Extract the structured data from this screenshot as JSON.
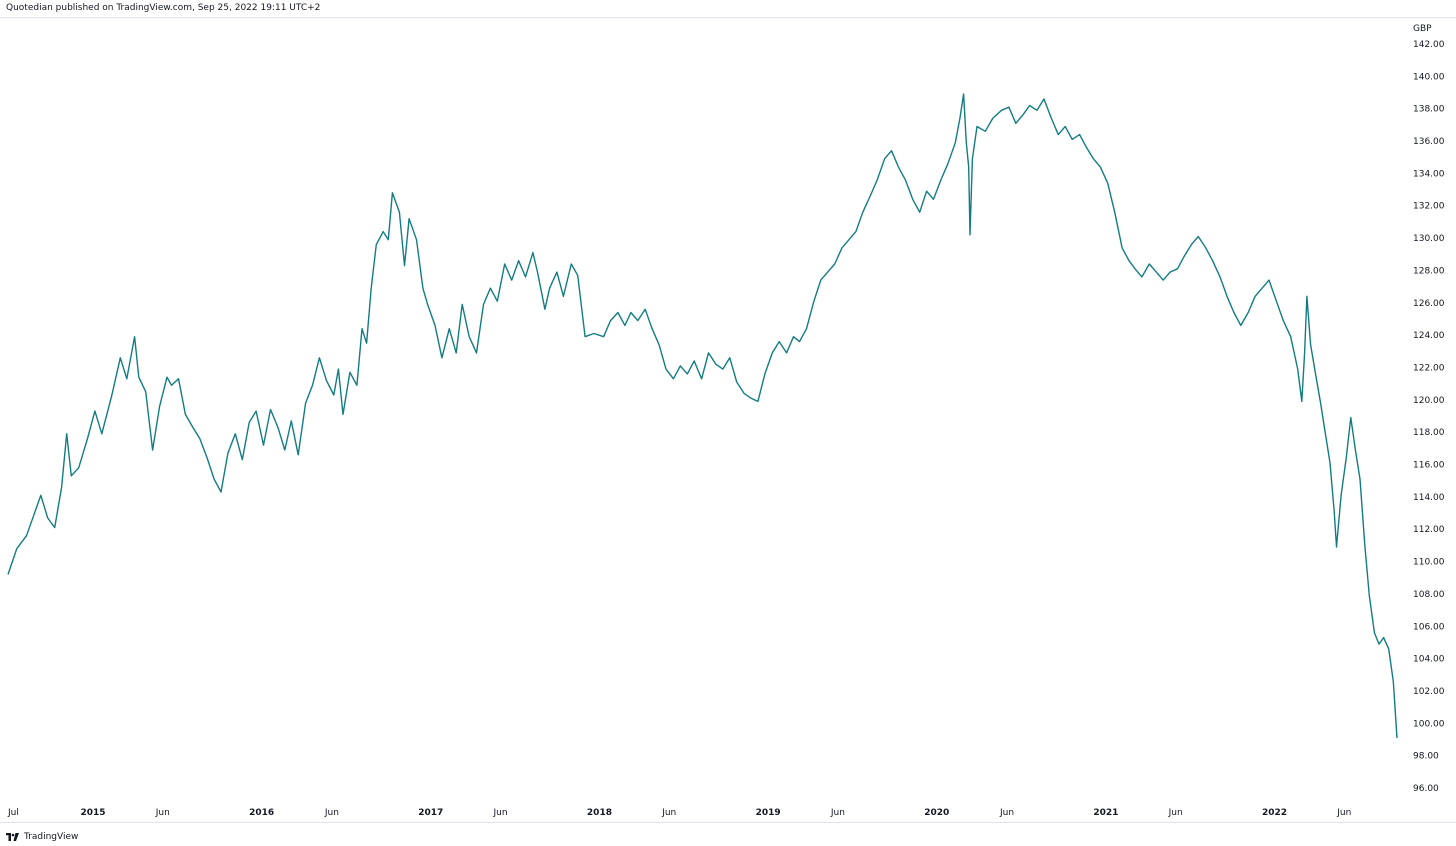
{
  "header": {
    "attribution": "Quotedian published on TradingView.com, Sep 25, 2022 19:11 UTC+2"
  },
  "footer": {
    "brand": "TradingView",
    "logo_icon": "tradingview-logo-icon"
  },
  "colors": {
    "line": "#137c82",
    "axis_text": "#131722",
    "border": "#e0e3eb"
  },
  "chart_data": {
    "type": "line",
    "title": "",
    "currency": "GBP",
    "ylim": [
      96,
      142
    ],
    "yticks": [
      96,
      98,
      100,
      102,
      104,
      106,
      108,
      110,
      112,
      114,
      116,
      118,
      120,
      122,
      124,
      126,
      128,
      130,
      132,
      134,
      136,
      138,
      140,
      142
    ],
    "xlim": [
      "2014-07-01",
      "2022-09-23"
    ],
    "xticks": [
      {
        "date": "2014-07-01",
        "label": "Jul",
        "bold": false
      },
      {
        "date": "2015-01-01",
        "label": "2015",
        "bold": true
      },
      {
        "date": "2015-06-01",
        "label": "Jun",
        "bold": false
      },
      {
        "date": "2016-01-01",
        "label": "2016",
        "bold": true
      },
      {
        "date": "2016-06-01",
        "label": "Jun",
        "bold": false
      },
      {
        "date": "2017-01-01",
        "label": "2017",
        "bold": true
      },
      {
        "date": "2017-06-01",
        "label": "Jun",
        "bold": false
      },
      {
        "date": "2018-01-01",
        "label": "2018",
        "bold": true
      },
      {
        "date": "2018-06-01",
        "label": "Jun",
        "bold": false
      },
      {
        "date": "2019-01-01",
        "label": "2019",
        "bold": true
      },
      {
        "date": "2019-06-01",
        "label": "Jun",
        "bold": false
      },
      {
        "date": "2020-01-01",
        "label": "2020",
        "bold": true
      },
      {
        "date": "2020-06-01",
        "label": "Jun",
        "bold": false
      },
      {
        "date": "2021-01-01",
        "label": "2021",
        "bold": true
      },
      {
        "date": "2021-06-01",
        "label": "Jun",
        "bold": false
      },
      {
        "date": "2022-01-01",
        "label": "2022",
        "bold": true
      },
      {
        "date": "2022-06-01",
        "label": "Jun",
        "bold": false
      }
    ],
    "series": [
      {
        "points": [
          [
            "2014-07-01",
            109.2
          ],
          [
            "2014-07-20",
            110.8
          ],
          [
            "2014-08-10",
            111.6
          ],
          [
            "2014-08-25",
            112.8
          ],
          [
            "2014-09-10",
            114.1
          ],
          [
            "2014-09-25",
            112.7
          ],
          [
            "2014-10-10",
            112.1
          ],
          [
            "2014-10-25",
            114.6
          ],
          [
            "2014-11-05",
            117.9
          ],
          [
            "2014-11-15",
            115.3
          ],
          [
            "2014-12-01",
            115.8
          ],
          [
            "2014-12-20",
            117.6
          ],
          [
            "2015-01-05",
            119.3
          ],
          [
            "2015-01-20",
            117.9
          ],
          [
            "2015-02-10",
            120.2
          ],
          [
            "2015-03-01",
            122.6
          ],
          [
            "2015-03-15",
            121.3
          ],
          [
            "2015-04-01",
            123.9
          ],
          [
            "2015-04-10",
            121.4
          ],
          [
            "2015-04-25",
            120.5
          ],
          [
            "2015-05-10",
            116.9
          ],
          [
            "2015-05-25",
            119.6
          ],
          [
            "2015-06-10",
            121.4
          ],
          [
            "2015-06-20",
            120.9
          ],
          [
            "2015-07-05",
            121.3
          ],
          [
            "2015-07-20",
            119.1
          ],
          [
            "2015-08-05",
            118.3
          ],
          [
            "2015-08-20",
            117.6
          ],
          [
            "2015-09-05",
            116.4
          ],
          [
            "2015-09-20",
            115.1
          ],
          [
            "2015-10-05",
            114.3
          ],
          [
            "2015-10-20",
            116.7
          ],
          [
            "2015-11-05",
            117.9
          ],
          [
            "2015-11-20",
            116.3
          ],
          [
            "2015-12-05",
            118.6
          ],
          [
            "2015-12-20",
            119.3
          ],
          [
            "2016-01-05",
            117.2
          ],
          [
            "2016-01-20",
            119.4
          ],
          [
            "2016-02-05",
            118.3
          ],
          [
            "2016-02-20",
            116.9
          ],
          [
            "2016-03-05",
            118.7
          ],
          [
            "2016-03-20",
            116.6
          ],
          [
            "2016-04-05",
            119.8
          ],
          [
            "2016-04-20",
            120.9
          ],
          [
            "2016-05-05",
            122.6
          ],
          [
            "2016-05-20",
            121.2
          ],
          [
            "2016-06-05",
            120.3
          ],
          [
            "2016-06-15",
            121.9
          ],
          [
            "2016-06-25",
            119.1
          ],
          [
            "2016-07-10",
            121.7
          ],
          [
            "2016-07-25",
            120.9
          ],
          [
            "2016-08-05",
            124.4
          ],
          [
            "2016-08-15",
            123.5
          ],
          [
            "2016-08-25",
            126.9
          ],
          [
            "2016-09-05",
            129.6
          ],
          [
            "2016-09-20",
            130.4
          ],
          [
            "2016-10-01",
            129.9
          ],
          [
            "2016-10-10",
            132.8
          ],
          [
            "2016-10-25",
            131.6
          ],
          [
            "2016-11-05",
            128.3
          ],
          [
            "2016-11-15",
            131.2
          ],
          [
            "2016-12-01",
            129.9
          ],
          [
            "2016-12-15",
            126.9
          ],
          [
            "2016-12-25",
            125.9
          ],
          [
            "2017-01-10",
            124.6
          ],
          [
            "2017-01-25",
            122.6
          ],
          [
            "2017-02-10",
            124.4
          ],
          [
            "2017-02-25",
            122.9
          ],
          [
            "2017-03-10",
            125.9
          ],
          [
            "2017-03-25",
            123.9
          ],
          [
            "2017-04-10",
            122.9
          ],
          [
            "2017-04-25",
            125.9
          ],
          [
            "2017-05-10",
            126.9
          ],
          [
            "2017-05-25",
            126.1
          ],
          [
            "2017-06-10",
            128.4
          ],
          [
            "2017-06-25",
            127.4
          ],
          [
            "2017-07-10",
            128.6
          ],
          [
            "2017-07-25",
            127.6
          ],
          [
            "2017-08-10",
            129.1
          ],
          [
            "2017-08-20",
            127.9
          ],
          [
            "2017-09-05",
            125.6
          ],
          [
            "2017-09-15",
            126.9
          ],
          [
            "2017-10-01",
            127.9
          ],
          [
            "2017-10-15",
            126.4
          ],
          [
            "2017-11-01",
            128.4
          ],
          [
            "2017-11-15",
            127.7
          ],
          [
            "2017-12-01",
            123.9
          ],
          [
            "2017-12-20",
            124.1
          ],
          [
            "2018-01-10",
            123.9
          ],
          [
            "2018-01-25",
            124.9
          ],
          [
            "2018-02-10",
            125.4
          ],
          [
            "2018-02-25",
            124.6
          ],
          [
            "2018-03-10",
            125.4
          ],
          [
            "2018-03-25",
            124.9
          ],
          [
            "2018-04-10",
            125.6
          ],
          [
            "2018-04-25",
            124.4
          ],
          [
            "2018-05-10",
            123.4
          ],
          [
            "2018-05-25",
            121.9
          ],
          [
            "2018-06-10",
            121.3
          ],
          [
            "2018-06-25",
            122.1
          ],
          [
            "2018-07-10",
            121.6
          ],
          [
            "2018-07-25",
            122.4
          ],
          [
            "2018-08-10",
            121.3
          ],
          [
            "2018-08-25",
            122.9
          ],
          [
            "2018-09-10",
            122.2
          ],
          [
            "2018-09-25",
            121.9
          ],
          [
            "2018-10-10",
            122.6
          ],
          [
            "2018-10-25",
            121.1
          ],
          [
            "2018-11-10",
            120.4
          ],
          [
            "2018-11-25",
            120.1
          ],
          [
            "2018-12-10",
            119.9
          ],
          [
            "2018-12-25",
            121.6
          ],
          [
            "2019-01-10",
            122.9
          ],
          [
            "2019-01-25",
            123.6
          ],
          [
            "2019-02-10",
            122.9
          ],
          [
            "2019-02-25",
            123.9
          ],
          [
            "2019-03-10",
            123.6
          ],
          [
            "2019-03-25",
            124.4
          ],
          [
            "2019-04-10",
            126.1
          ],
          [
            "2019-04-25",
            127.4
          ],
          [
            "2019-05-10",
            127.9
          ],
          [
            "2019-05-25",
            128.4
          ],
          [
            "2019-06-10",
            129.4
          ],
          [
            "2019-06-25",
            129.9
          ],
          [
            "2019-07-10",
            130.4
          ],
          [
            "2019-07-25",
            131.6
          ],
          [
            "2019-08-10",
            132.6
          ],
          [
            "2019-08-25",
            133.6
          ],
          [
            "2019-09-10",
            134.9
          ],
          [
            "2019-09-25",
            135.4
          ],
          [
            "2019-10-10",
            134.4
          ],
          [
            "2019-10-25",
            133.6
          ],
          [
            "2019-11-10",
            132.4
          ],
          [
            "2019-11-25",
            131.6
          ],
          [
            "2019-12-10",
            132.9
          ],
          [
            "2019-12-25",
            132.4
          ],
          [
            "2020-01-10",
            133.6
          ],
          [
            "2020-01-25",
            134.6
          ],
          [
            "2020-02-10",
            135.9
          ],
          [
            "2020-02-20",
            137.4
          ],
          [
            "2020-02-28",
            138.9
          ],
          [
            "2020-03-05",
            135.9
          ],
          [
            "2020-03-10",
            134.4
          ],
          [
            "2020-03-13",
            130.2
          ],
          [
            "2020-03-18",
            134.9
          ],
          [
            "2020-03-28",
            136.9
          ],
          [
            "2020-04-15",
            136.6
          ],
          [
            "2020-05-01",
            137.4
          ],
          [
            "2020-05-20",
            137.9
          ],
          [
            "2020-06-05",
            138.1
          ],
          [
            "2020-06-20",
            137.1
          ],
          [
            "2020-07-05",
            137.6
          ],
          [
            "2020-07-20",
            138.2
          ],
          [
            "2020-08-05",
            137.9
          ],
          [
            "2020-08-20",
            138.6
          ],
          [
            "2020-09-05",
            137.4
          ],
          [
            "2020-09-20",
            136.4
          ],
          [
            "2020-10-05",
            136.9
          ],
          [
            "2020-10-20",
            136.1
          ],
          [
            "2020-11-05",
            136.4
          ],
          [
            "2020-11-20",
            135.6
          ],
          [
            "2020-12-05",
            134.9
          ],
          [
            "2020-12-20",
            134.4
          ],
          [
            "2021-01-05",
            133.4
          ],
          [
            "2021-01-20",
            131.6
          ],
          [
            "2021-02-05",
            129.4
          ],
          [
            "2021-02-20",
            128.6
          ],
          [
            "2021-03-05",
            128.1
          ],
          [
            "2021-03-20",
            127.6
          ],
          [
            "2021-04-05",
            128.4
          ],
          [
            "2021-04-20",
            127.9
          ],
          [
            "2021-05-05",
            127.4
          ],
          [
            "2021-05-20",
            127.9
          ],
          [
            "2021-06-05",
            128.1
          ],
          [
            "2021-06-20",
            128.9
          ],
          [
            "2021-07-05",
            129.6
          ],
          [
            "2021-07-20",
            130.1
          ],
          [
            "2021-08-05",
            129.4
          ],
          [
            "2021-08-20",
            128.6
          ],
          [
            "2021-09-05",
            127.6
          ],
          [
            "2021-09-20",
            126.4
          ],
          [
            "2021-10-05",
            125.4
          ],
          [
            "2021-10-20",
            124.6
          ],
          [
            "2021-11-05",
            125.4
          ],
          [
            "2021-11-20",
            126.4
          ],
          [
            "2021-12-05",
            126.9
          ],
          [
            "2021-12-20",
            127.4
          ],
          [
            "2022-01-05",
            126.1
          ],
          [
            "2022-01-20",
            124.9
          ],
          [
            "2022-02-05",
            123.9
          ],
          [
            "2022-02-20",
            121.9
          ],
          [
            "2022-03-01",
            119.9
          ],
          [
            "2022-03-07",
            122.9
          ],
          [
            "2022-03-12",
            126.4
          ],
          [
            "2022-03-20",
            123.4
          ],
          [
            "2022-04-01",
            121.4
          ],
          [
            "2022-04-10",
            119.9
          ],
          [
            "2022-04-20",
            118.1
          ],
          [
            "2022-05-01",
            116.1
          ],
          [
            "2022-05-10",
            113.1
          ],
          [
            "2022-05-15",
            110.9
          ],
          [
            "2022-05-25",
            114.1
          ],
          [
            "2022-06-05",
            116.4
          ],
          [
            "2022-06-15",
            118.9
          ],
          [
            "2022-06-25",
            116.9
          ],
          [
            "2022-07-05",
            115.1
          ],
          [
            "2022-07-15",
            111.1
          ],
          [
            "2022-07-25",
            107.9
          ],
          [
            "2022-08-05",
            105.6
          ],
          [
            "2022-08-15",
            104.9
          ],
          [
            "2022-08-25",
            105.3
          ],
          [
            "2022-09-05",
            104.6
          ],
          [
            "2022-09-15",
            102.6
          ],
          [
            "2022-09-23",
            99.1
          ]
        ]
      }
    ]
  }
}
